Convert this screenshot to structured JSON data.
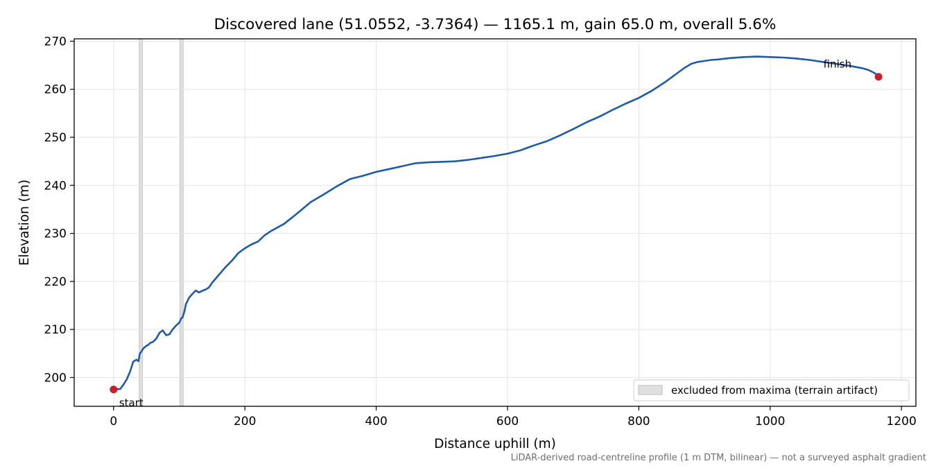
{
  "chart_data": {
    "type": "line",
    "title": "Discovered lane (51.0552, -3.7364) — 1165.1 m, gain 65.0 m, overall 5.6%",
    "xlabel": "Distance uphill (m)",
    "ylabel": "Elevation (m)",
    "xlim": [
      -60,
      1222
    ],
    "ylim": [
      194,
      270.5
    ],
    "xticks": [
      0,
      200,
      400,
      600,
      800,
      1000,
      1200
    ],
    "yticks": [
      200,
      210,
      220,
      230,
      240,
      250,
      260,
      270
    ],
    "grid": true,
    "legend_position": "lower-right",
    "series": [
      {
        "color": "#1f5aa6",
        "x": [
          0,
          10,
          15,
          20,
          25,
          30,
          35,
          38,
          40,
          42,
          45,
          50,
          53,
          56,
          60,
          65,
          70,
          75,
          80,
          85,
          90,
          95,
          100,
          103,
          105,
          108,
          110,
          115,
          120,
          125,
          130,
          133,
          136,
          140,
          145,
          150,
          160,
          170,
          180,
          190,
          200,
          210,
          220,
          230,
          240,
          260,
          280,
          300,
          320,
          340,
          360,
          380,
          400,
          420,
          440,
          460,
          480,
          500,
          520,
          540,
          560,
          580,
          600,
          620,
          640,
          660,
          680,
          700,
          720,
          740,
          760,
          780,
          800,
          820,
          840,
          860,
          870,
          880,
          890,
          900,
          910,
          920,
          940,
          960,
          980,
          1000,
          1020,
          1040,
          1060,
          1080,
          1100,
          1120,
          1140,
          1150,
          1160,
          1165.1
        ],
        "y": [
          197.5,
          197.6,
          198.5,
          199.6,
          201.2,
          203.3,
          203.7,
          203.4,
          205.0,
          205.3,
          206.0,
          206.6,
          206.8,
          207.2,
          207.4,
          208.1,
          209.3,
          209.8,
          208.8,
          209.0,
          210.0,
          210.8,
          211.4,
          212.3,
          212.5,
          213.8,
          215.2,
          216.6,
          217.4,
          218.1,
          217.7,
          217.9,
          218.1,
          218.3,
          218.7,
          219.7,
          221.3,
          222.9,
          224.3,
          225.9,
          226.9,
          227.7,
          228.3,
          229.6,
          230.5,
          232.0,
          234.2,
          236.5,
          238.1,
          239.8,
          241.3,
          242.0,
          242.8,
          243.4,
          244.0,
          244.6,
          244.8,
          244.9,
          245.0,
          245.3,
          245.7,
          246.1,
          246.6,
          247.3,
          248.3,
          249.2,
          250.4,
          251.7,
          253.1,
          254.3,
          255.7,
          257.0,
          258.2,
          259.7,
          261.5,
          263.5,
          264.5,
          265.3,
          265.7,
          265.9,
          266.1,
          266.2,
          266.5,
          266.7,
          266.8,
          266.7,
          266.6,
          266.4,
          266.1,
          265.7,
          265.3,
          264.9,
          264.4,
          264.0,
          263.3,
          262.6
        ]
      }
    ],
    "markers": [
      {
        "label": "start",
        "x": 0,
        "y": 197.5,
        "color": "#c8202a"
      },
      {
        "label": "finish",
        "x": 1165.1,
        "y": 262.6,
        "color": "#c8202a"
      }
    ],
    "shaded_bands": [
      {
        "x_from": 39,
        "x_to": 44
      },
      {
        "x_from": 101,
        "x_to": 106
      }
    ],
    "legend": [
      {
        "label": "excluded from maxima (terrain artifact)",
        "swatch": "#e0e0e0"
      }
    ],
    "footnote": "LiDAR-derived road-centreline profile (1 m DTM, bilinear) — not a surveyed asphalt gradient"
  }
}
